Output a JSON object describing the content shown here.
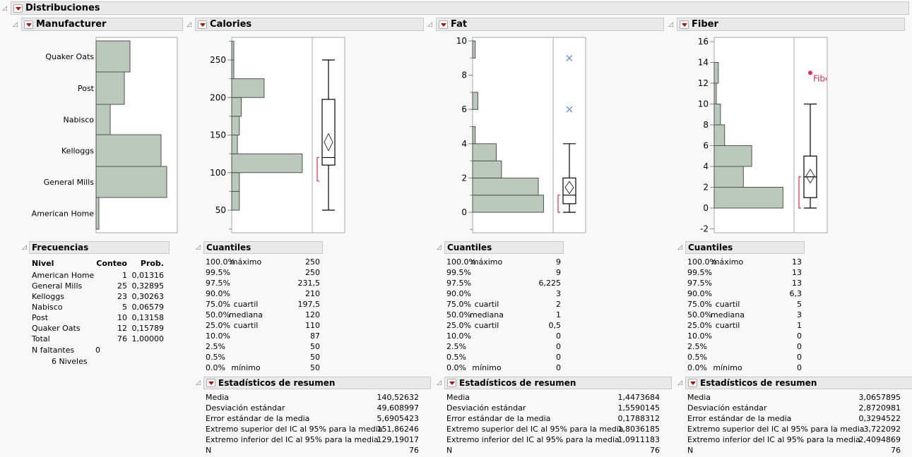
{
  "report": {
    "title": "Distribuciones"
  },
  "panels": {
    "manufacturer": {
      "title": "Manufacturer"
    },
    "calories": {
      "title": "Calories"
    },
    "fat": {
      "title": "Fat"
    },
    "fiber": {
      "title": "Fiber"
    }
  },
  "frequencies": {
    "title": "Frecuencias",
    "columns": [
      "Nivel",
      "Conteo",
      "Prob."
    ],
    "rows": [
      [
        "American Home",
        "1",
        "0,01316"
      ],
      [
        "General Mills",
        "25",
        "0,32895"
      ],
      [
        "Kelloggs",
        "23",
        "0,30263"
      ],
      [
        "Nabisco",
        "5",
        "0,06579"
      ],
      [
        "Post",
        "10",
        "0,13158"
      ],
      [
        "Quaker Oats",
        "12",
        "0,15789"
      ],
      [
        "Total",
        "76",
        "1,00000"
      ]
    ],
    "missing_label": "N faltantes",
    "missing_value": "0",
    "levels_label": "6  Niveles"
  },
  "quantiles": {
    "title": "Cuantiles",
    "calories": [
      [
        "100.0%",
        "máximo",
        "250"
      ],
      [
        "99.5%",
        "",
        "250"
      ],
      [
        "97.5%",
        "",
        "231,5"
      ],
      [
        "90.0%",
        "",
        "210"
      ],
      [
        "75.0%",
        "cuartil",
        "197,5"
      ],
      [
        "50.0%",
        "mediana",
        "120"
      ],
      [
        "25.0%",
        "cuartil",
        "110"
      ],
      [
        "10.0%",
        "",
        "87"
      ],
      [
        "2.5%",
        "",
        "50"
      ],
      [
        "0.5%",
        "",
        "50"
      ],
      [
        "0.0%",
        "mínimo",
        "50"
      ]
    ],
    "fat": [
      [
        "100.0%",
        "máximo",
        "9"
      ],
      [
        "99.5%",
        "",
        "9"
      ],
      [
        "97.5%",
        "",
        "6,225"
      ],
      [
        "90.0%",
        "",
        "3"
      ],
      [
        "75.0%",
        "cuartil",
        "2"
      ],
      [
        "50.0%",
        "mediana",
        "1"
      ],
      [
        "25.0%",
        "cuartil",
        "0,5"
      ],
      [
        "10.0%",
        "",
        "0"
      ],
      [
        "2.5%",
        "",
        "0"
      ],
      [
        "0.5%",
        "",
        "0"
      ],
      [
        "0.0%",
        "mínimo",
        "0"
      ]
    ],
    "fiber": [
      [
        "100.0%",
        "máximo",
        "13"
      ],
      [
        "99.5%",
        "",
        "13"
      ],
      [
        "97.5%",
        "",
        "13"
      ],
      [
        "90.0%",
        "",
        "6,3"
      ],
      [
        "75.0%",
        "cuartil",
        "5"
      ],
      [
        "50.0%",
        "mediana",
        "3"
      ],
      [
        "25.0%",
        "cuartil",
        "1"
      ],
      [
        "10.0%",
        "",
        "0"
      ],
      [
        "2.5%",
        "",
        "0"
      ],
      [
        "0.5%",
        "",
        "0"
      ],
      [
        "0.0%",
        "mínimo",
        "0"
      ]
    ]
  },
  "summary": {
    "title": "Estadísticos de resumen",
    "labels": [
      "Media",
      "Desviación estándar",
      "Error estándar de la media",
      "Extremo superior del IC al 95% para la media",
      "Extremo inferior del IC al 95% para la media",
      "N"
    ],
    "calories": [
      "140,52632",
      "49,608997",
      "5,6905423",
      "151,86246",
      "129,19017",
      "76"
    ],
    "fat": [
      "1,4473684",
      "1,5590145",
      "0,1788312",
      "1,8036185",
      "1,0911183",
      "76"
    ],
    "fiber": [
      "3,0657895",
      "2,8720981",
      "0,3294522",
      "3,722092",
      "2,4094869",
      "76"
    ]
  },
  "colors": {
    "bar_fill": "#bbc9bc",
    "bar_stroke": "#4b534b",
    "outlier": "#5a8cf0",
    "label_point": "#e8294a",
    "shortest_half": "#e8294a",
    "menu_arrow": "#cc0000"
  },
  "chart_data": [
    {
      "type": "bar",
      "orientation": "horizontal",
      "variable": "Manufacturer",
      "categories": [
        "American Home",
        "General Mills",
        "Kelloggs",
        "Nabisco",
        "Post",
        "Quaker Oats"
      ],
      "values": [
        1,
        25,
        23,
        5,
        10,
        12
      ]
    },
    {
      "type": "histogram",
      "variable": "Calories",
      "bin_width": 25,
      "bins": [
        [
          50,
          75,
          4
        ],
        [
          75,
          100,
          4
        ],
        [
          100,
          125,
          37
        ],
        [
          125,
          150,
          3
        ],
        [
          150,
          175,
          4
        ],
        [
          175,
          200,
          5
        ],
        [
          200,
          225,
          17
        ],
        [
          225,
          250,
          1
        ],
        [
          250,
          275,
          1
        ]
      ],
      "yticks": [
        50,
        100,
        150,
        200,
        250
      ],
      "ylim": [
        24,
        276
      ],
      "boxplot": {
        "min": 50,
        "q1": 110,
        "median": 120,
        "q3": 197.5,
        "max": 250,
        "mean": 140.52632,
        "ci": [
          129.19017,
          151.86246
        ],
        "shortest_half": [
          89,
          120
        ],
        "outliers": []
      }
    },
    {
      "type": "histogram",
      "variable": "Fat",
      "bin_width": 1,
      "bins": [
        [
          0,
          1,
          27
        ],
        [
          1,
          2,
          25
        ],
        [
          2,
          3,
          11
        ],
        [
          3,
          4,
          9
        ],
        [
          4,
          5,
          1
        ],
        [
          5,
          6,
          0
        ],
        [
          6,
          7,
          2
        ],
        [
          7,
          8,
          0
        ],
        [
          8,
          9,
          0
        ],
        [
          9,
          10,
          1
        ]
      ],
      "yticks": [
        0,
        2,
        4,
        6,
        8,
        10
      ],
      "ylim": [
        -1,
        10.2
      ],
      "boxplot": {
        "min": 0,
        "q1": 0.5,
        "median": 1,
        "q3": 2,
        "max": 4,
        "mean": 1.4473684,
        "ci": [
          1.0911183,
          1.8036185
        ],
        "shortest_half": [
          0,
          1
        ],
        "outliers": [
          6,
          9
        ]
      }
    },
    {
      "type": "histogram",
      "variable": "Fiber",
      "bin_width": 2,
      "bins": [
        [
          0,
          2,
          33
        ],
        [
          2,
          4,
          14
        ],
        [
          4,
          6,
          18
        ],
        [
          6,
          8,
          5
        ],
        [
          8,
          10,
          3
        ],
        [
          10,
          12,
          1
        ],
        [
          12,
          14,
          2
        ]
      ],
      "yticks": [
        -2,
        0,
        2,
        4,
        6,
        8,
        10,
        12,
        14,
        16
      ],
      "ylim": [
        -2.3,
        16.3
      ],
      "boxplot": {
        "min": 0,
        "q1": 1,
        "median": 3,
        "q3": 5,
        "max": 10,
        "mean": 3.0657895,
        "ci": [
          2.4094869,
          3.722092
        ],
        "shortest_half": [
          0,
          3
        ],
        "outliers": [],
        "labeled_point": {
          "value": 13,
          "label": "Fiber"
        }
      }
    }
  ]
}
